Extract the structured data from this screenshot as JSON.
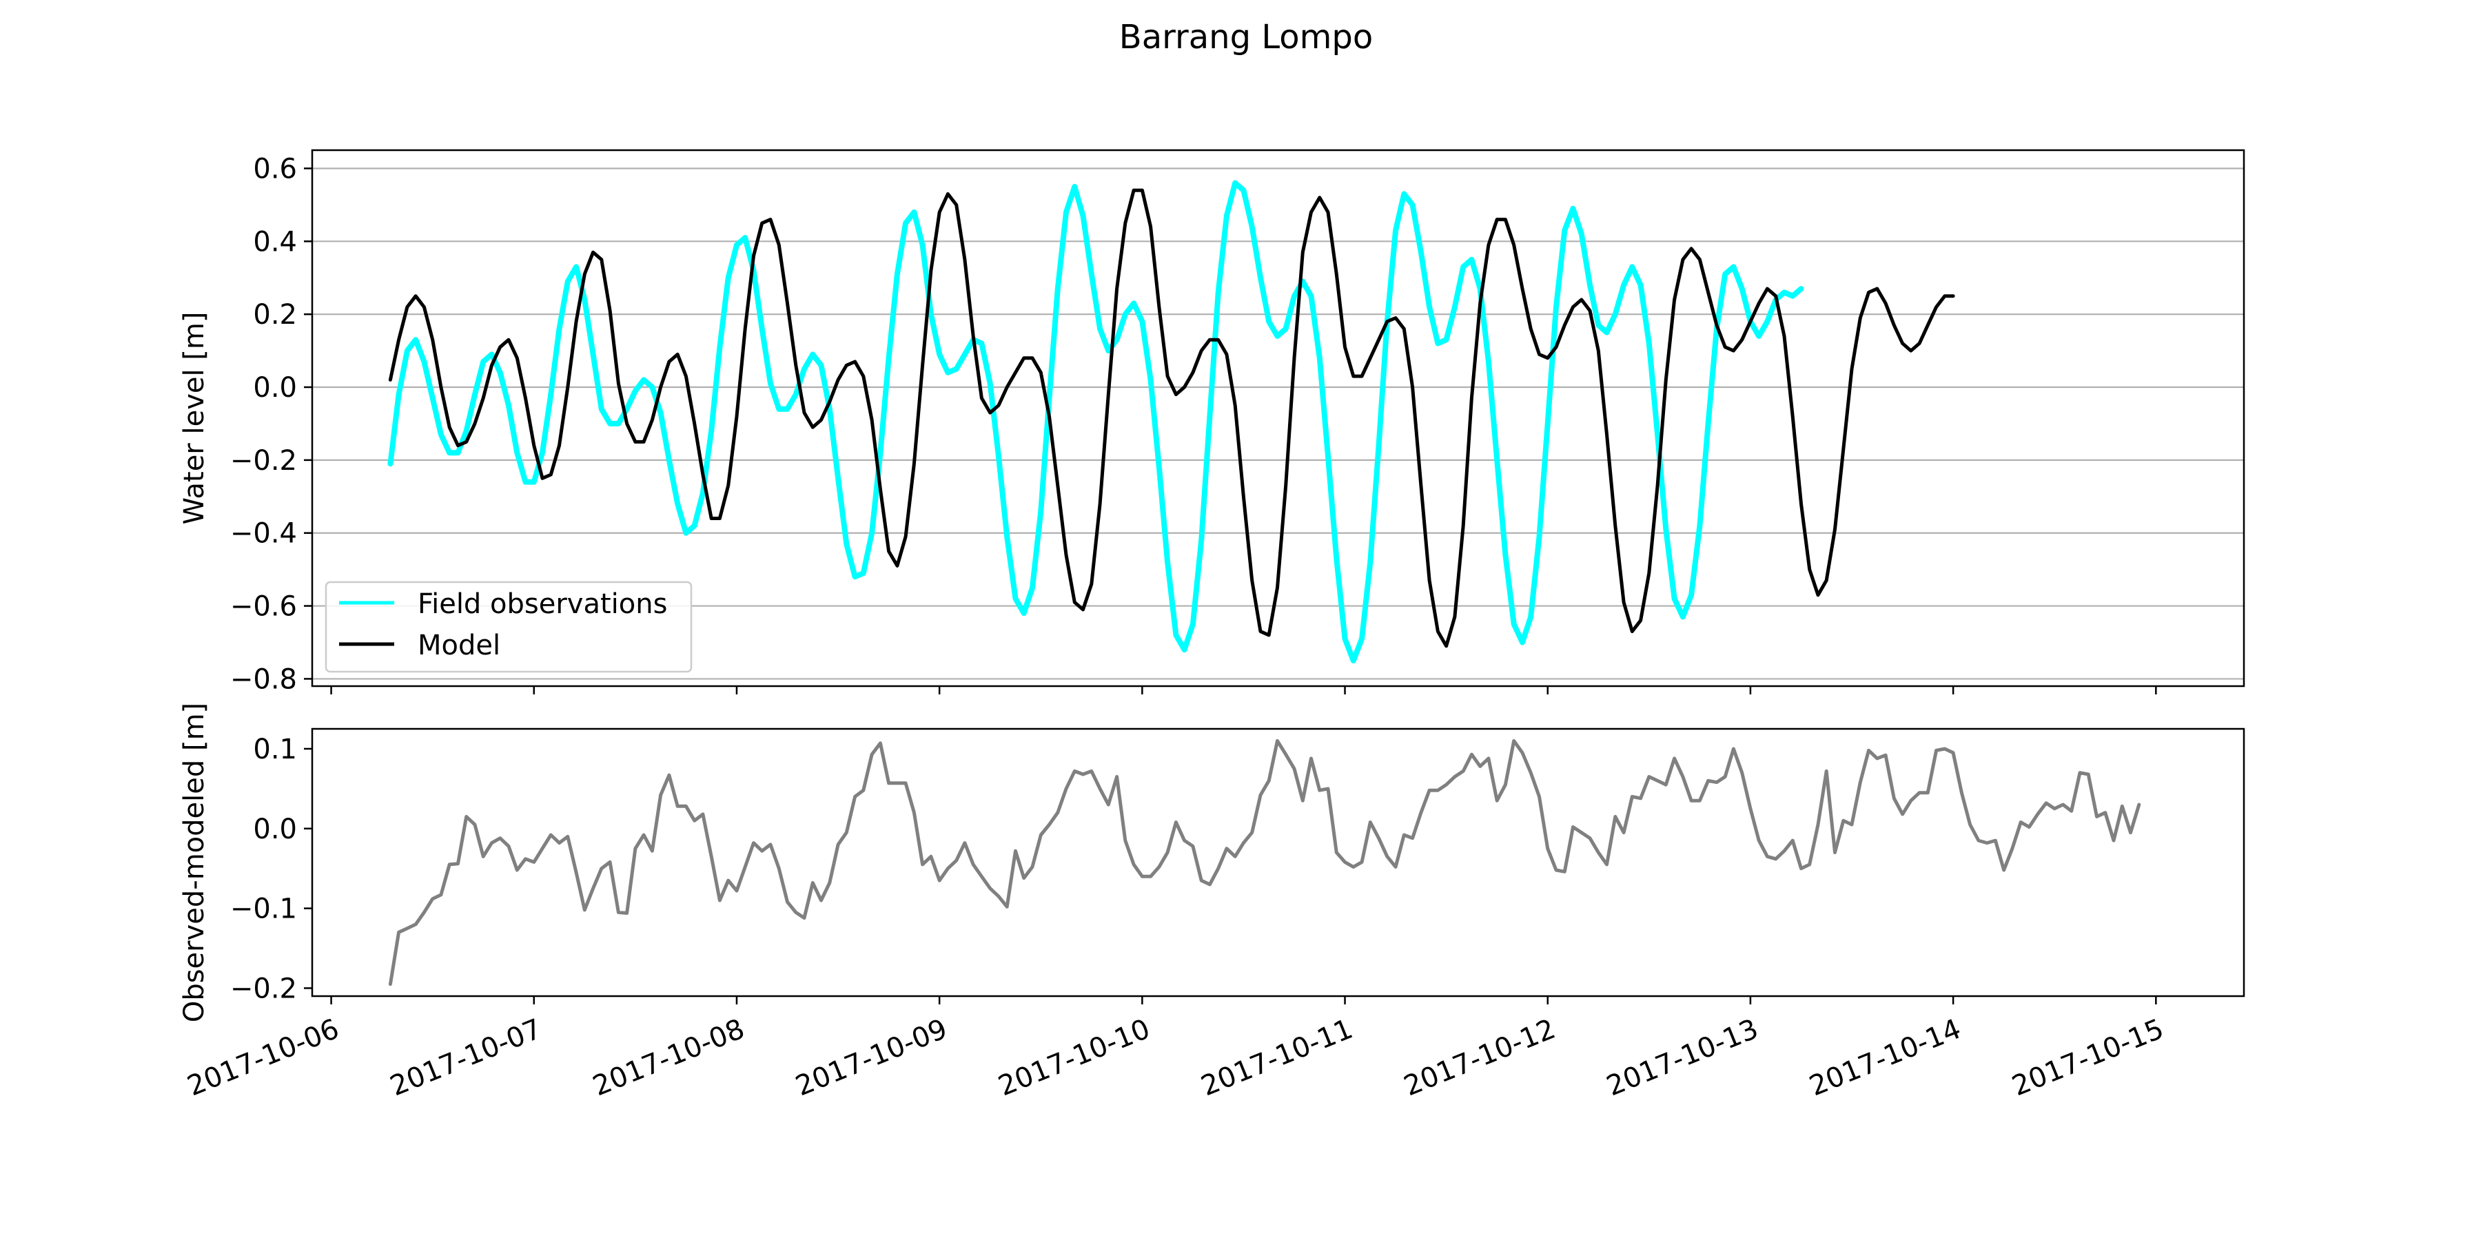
{
  "figure": {
    "title": "Barrang Lompo"
  },
  "chart_data": [
    {
      "type": "line",
      "ylabel": "Water level [m]",
      "ylim": [
        -0.82,
        0.65
      ],
      "yticks": [
        0.6,
        0.4,
        0.2,
        0.0,
        -0.2,
        -0.4,
        -0.6,
        -0.8
      ],
      "ytick_labels": [
        "0.6",
        "0.4",
        "0.2",
        "0.0",
        "−0.2",
        "−0.4",
        "−0.6",
        "−0.8"
      ],
      "xlim": [
        "2017-10-05 21:45",
        "2017-10-15 10:25"
      ],
      "xticks": [
        "2017-10-06",
        "2017-10-07",
        "2017-10-08",
        "2017-10-09",
        "2017-10-10",
        "2017-10-11",
        "2017-10-12",
        "2017-10-13",
        "2017-10-14",
        "2017-10-15"
      ],
      "grid": "y",
      "legend": "lower-left",
      "series": [
        {
          "name": "Field observations",
          "color": "#00FFFF",
          "x_start": "2017-10-06 07:00",
          "x_step_hours": 1,
          "values": [
            -0.21,
            -0.02,
            0.1,
            0.13,
            0.07,
            -0.03,
            -0.13,
            -0.18,
            -0.18,
            -0.12,
            -0.02,
            0.07,
            0.09,
            0.04,
            -0.05,
            -0.18,
            -0.26,
            -0.26,
            -0.18,
            -0.02,
            0.16,
            0.29,
            0.33,
            0.24,
            0.09,
            -0.06,
            -0.1,
            -0.1,
            -0.06,
            -0.01,
            0.02,
            0.0,
            -0.07,
            -0.2,
            -0.32,
            -0.4,
            -0.38,
            -0.29,
            -0.12,
            0.11,
            0.3,
            0.39,
            0.41,
            0.32,
            0.16,
            0.01,
            -0.06,
            -0.06,
            -0.02,
            0.05,
            0.09,
            0.06,
            -0.06,
            -0.25,
            -0.43,
            -0.52,
            -0.51,
            -0.4,
            -0.18,
            0.08,
            0.31,
            0.45,
            0.48,
            0.39,
            0.2,
            0.09,
            0.04,
            0.05,
            0.09,
            0.13,
            0.12,
            0.01,
            -0.19,
            -0.41,
            -0.58,
            -0.62,
            -0.55,
            -0.34,
            -0.03,
            0.27,
            0.48,
            0.55,
            0.47,
            0.31,
            0.16,
            0.1,
            0.13,
            0.2,
            0.23,
            0.18,
            0.02,
            -0.22,
            -0.48,
            -0.68,
            -0.72,
            -0.65,
            -0.42,
            -0.08,
            0.26,
            0.47,
            0.56,
            0.54,
            0.44,
            0.3,
            0.18,
            0.14,
            0.16,
            0.25,
            0.29,
            0.25,
            0.08,
            -0.19,
            -0.47,
            -0.69,
            -0.75,
            -0.69,
            -0.48,
            -0.16,
            0.18,
            0.43,
            0.53,
            0.5,
            0.37,
            0.22,
            0.12,
            0.13,
            0.22,
            0.33,
            0.35,
            0.27,
            0.07,
            -0.2,
            -0.46,
            -0.65,
            -0.7,
            -0.63,
            -0.41,
            -0.1,
            0.22,
            0.43,
            0.49,
            0.42,
            0.28,
            0.17,
            0.15,
            0.2,
            0.28,
            0.33,
            0.28,
            0.12,
            -0.13,
            -0.39,
            -0.58,
            -0.63,
            -0.57,
            -0.38,
            -0.1,
            0.16,
            0.31,
            0.33,
            0.27,
            0.18,
            0.14,
            0.18,
            0.24,
            0.26,
            0.25,
            0.27
          ]
        },
        {
          "name": "Model",
          "color": "#000000",
          "x_start": "2017-10-06 07:00",
          "x_step_hours": 1,
          "values": [
            0.02,
            0.13,
            0.22,
            0.25,
            0.22,
            0.13,
            0.0,
            -0.11,
            -0.16,
            -0.15,
            -0.1,
            -0.03,
            0.06,
            0.11,
            0.13,
            0.08,
            -0.03,
            -0.16,
            -0.25,
            -0.24,
            -0.16,
            0.0,
            0.18,
            0.31,
            0.37,
            0.35,
            0.21,
            0.01,
            -0.1,
            -0.15,
            -0.15,
            -0.09,
            0.0,
            0.07,
            0.09,
            0.03,
            -0.1,
            -0.24,
            -0.36,
            -0.36,
            -0.27,
            -0.08,
            0.16,
            0.36,
            0.45,
            0.46,
            0.39,
            0.23,
            0.06,
            -0.07,
            -0.11,
            -0.09,
            -0.04,
            0.02,
            0.06,
            0.07,
            0.03,
            -0.09,
            -0.28,
            -0.45,
            -0.49,
            -0.41,
            -0.21,
            0.06,
            0.32,
            0.48,
            0.53,
            0.5,
            0.35,
            0.14,
            -0.03,
            -0.07,
            -0.05,
            0.0,
            0.04,
            0.08,
            0.08,
            0.04,
            -0.08,
            -0.27,
            -0.46,
            -0.59,
            -0.61,
            -0.54,
            -0.32,
            -0.02,
            0.27,
            0.45,
            0.54,
            0.54,
            0.44,
            0.22,
            0.03,
            -0.02,
            0.0,
            0.04,
            0.1,
            0.13,
            0.13,
            0.09,
            -0.05,
            -0.3,
            -0.53,
            -0.67,
            -0.68,
            -0.55,
            -0.27,
            0.08,
            0.37,
            0.48,
            0.52,
            0.48,
            0.31,
            0.11,
            0.03,
            0.03,
            0.08,
            0.13,
            0.18,
            0.19,
            0.16,
            0.0,
            -0.27,
            -0.53,
            -0.67,
            -0.71,
            -0.63,
            -0.38,
            -0.03,
            0.23,
            0.39,
            0.46,
            0.46,
            0.39,
            0.27,
            0.16,
            0.09,
            0.08,
            0.11,
            0.17,
            0.22,
            0.24,
            0.21,
            0.1,
            -0.13,
            -0.38,
            -0.59,
            -0.67,
            -0.64,
            -0.51,
            -0.27,
            0.02,
            0.24,
            0.35,
            0.38,
            0.35,
            0.26,
            0.17,
            0.11,
            0.1,
            0.13,
            0.18,
            0.23,
            0.27,
            0.25,
            0.14,
            -0.08,
            -0.32,
            -0.5,
            -0.57,
            -0.53,
            -0.39,
            -0.17,
            0.05,
            0.19,
            0.26,
            0.27,
            0.23,
            0.17,
            0.12,
            0.1,
            0.12,
            0.17,
            0.22,
            0.25,
            0.25
          ]
        }
      ]
    },
    {
      "type": "line",
      "ylabel": "Observed-modeled [m]",
      "ylim": [
        -0.21,
        0.125
      ],
      "yticks": [
        0.1,
        0.0,
        -0.1,
        -0.2
      ],
      "ytick_labels": [
        "0.1",
        "0.0",
        "−0.1",
        "−0.2"
      ],
      "xlim": [
        "2017-10-05 21:45",
        "2017-10-15 10:25"
      ],
      "xticks": [
        "2017-10-06",
        "2017-10-07",
        "2017-10-08",
        "2017-10-09",
        "2017-10-10",
        "2017-10-11",
        "2017-10-12",
        "2017-10-13",
        "2017-10-14",
        "2017-10-15"
      ],
      "xtick_labels": [
        "2017-10-06",
        "2017-10-07",
        "2017-10-08",
        "2017-10-09",
        "2017-10-10",
        "2017-10-11",
        "2017-10-12",
        "2017-10-13",
        "2017-10-14",
        "2017-10-15"
      ],
      "grid": "none",
      "series": [
        {
          "color": "#808080",
          "x_start": "2017-10-06 07:00",
          "x_step_hours": 1,
          "values": [
            -0.195,
            -0.13,
            -0.125,
            -0.12,
            -0.105,
            -0.088,
            -0.083,
            -0.045,
            -0.044,
            0.015,
            0.005,
            -0.035,
            -0.018,
            -0.012,
            -0.022,
            -0.052,
            -0.038,
            -0.042,
            -0.025,
            -0.008,
            -0.018,
            -0.01,
            -0.055,
            -0.102,
            -0.075,
            -0.05,
            -0.042,
            -0.105,
            -0.106,
            -0.025,
            -0.008,
            -0.028,
            0.042,
            0.067,
            0.028,
            0.028,
            0.01,
            0.018,
            -0.035,
            -0.09,
            -0.065,
            -0.078,
            -0.048,
            -0.018,
            -0.028,
            -0.02,
            -0.05,
            -0.092,
            -0.105,
            -0.112,
            -0.068,
            -0.09,
            -0.068,
            -0.02,
            -0.005,
            0.04,
            0.048,
            0.093,
            0.107,
            0.057,
            0.057,
            0.057,
            0.02,
            -0.045,
            -0.035,
            -0.065,
            -0.05,
            -0.04,
            -0.018,
            -0.045,
            -0.06,
            -0.075,
            -0.085,
            -0.098,
            -0.028,
            -0.062,
            -0.048,
            -0.008,
            0.005,
            0.02,
            0.05,
            0.072,
            0.068,
            0.072,
            0.05,
            0.03,
            0.065,
            -0.015,
            -0.045,
            -0.06,
            -0.06,
            -0.048,
            -0.03,
            0.008,
            -0.015,
            -0.022,
            -0.065,
            -0.07,
            -0.05,
            -0.025,
            -0.035,
            -0.018,
            -0.005,
            0.042,
            0.06,
            0.11,
            0.093,
            0.075,
            0.035,
            0.088,
            0.048,
            0.05,
            -0.03,
            -0.042,
            -0.048,
            -0.042,
            0.008,
            -0.012,
            -0.035,
            -0.048,
            -0.008,
            -0.012,
            0.02,
            0.048,
            0.048,
            0.055,
            0.065,
            0.072,
            0.093,
            0.078,
            0.088,
            0.035,
            0.055,
            0.11,
            0.095,
            0.07,
            0.04,
            -0.025,
            -0.052,
            -0.054,
            0.002,
            -0.005,
            -0.012,
            -0.03,
            -0.045,
            0.015,
            -0.005,
            0.04,
            0.038,
            0.065,
            0.06,
            0.055,
            0.088,
            0.065,
            0.035,
            0.035,
            0.06,
            0.058,
            0.065,
            0.1,
            0.07,
            0.025,
            -0.015,
            -0.035,
            -0.038,
            -0.028,
            -0.015,
            -0.05,
            -0.045,
            0.005,
            0.072,
            -0.03,
            0.01,
            0.005,
            0.058,
            0.098,
            0.088,
            0.092,
            0.038,
            0.018,
            0.035,
            0.045,
            0.045,
            0.098,
            0.1,
            0.095,
            0.045,
            0.005,
            -0.015,
            -0.018,
            -0.015,
            -0.052,
            -0.025,
            0.008,
            0.002,
            0.018,
            0.032,
            0.025,
            0.03,
            0.022,
            0.07,
            0.068,
            0.015,
            0.02,
            -0.015,
            0.028,
            -0.005,
            0.03
          ]
        }
      ]
    }
  ]
}
